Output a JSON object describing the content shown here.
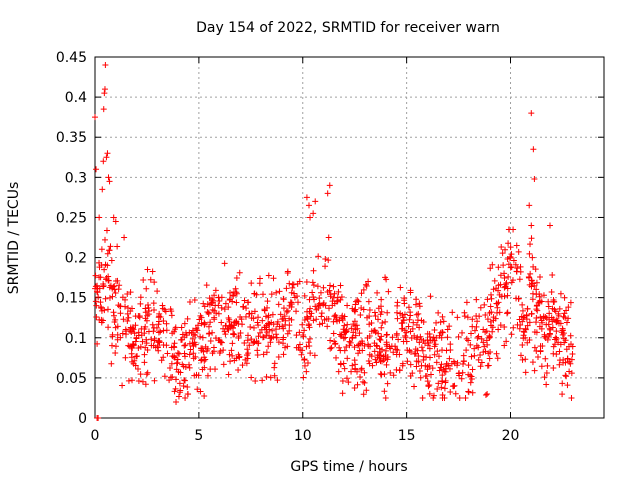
{
  "colors": {
    "marker": "#ff0000",
    "grid": "#a0a0a0",
    "axis": "#000000",
    "background": "#ffffff"
  },
  "chart_data": {
    "type": "scatter",
    "title": "Day 154 of 2022, SRMTID for receiver warn",
    "xlabel": "GPS time / hours",
    "ylabel": "SRMTID / TECUs",
    "xlim": [
      0,
      24.5
    ],
    "ylim": [
      0,
      0.45
    ],
    "grid": true,
    "legend": "none",
    "marker": "+",
    "x_ticks": [
      0,
      5,
      10,
      15,
      20
    ],
    "x_tick_labels": [
      "0",
      "5",
      "10",
      "15",
      "20"
    ],
    "y_ticks": [
      0,
      0.05,
      0.1,
      0.15,
      0.2,
      0.25,
      0.3,
      0.35,
      0.4,
      0.45
    ],
    "y_tick_labels": [
      "0",
      "0.05",
      "0.1",
      "0.15",
      "0.2",
      "0.25",
      "0.3",
      "0.35",
      "0.4",
      "0.45"
    ],
    "series": [
      {
        "name": "SRMTID",
        "profile_hours": [
          0.0,
          0.3,
          0.6,
          1.0,
          1.5,
          2.0,
          3.0,
          4.0,
          5.0,
          6.0,
          7.0,
          8.0,
          9.0,
          9.5,
          10.0,
          10.5,
          11.0,
          11.5,
          12.0,
          13.0,
          14.0,
          15.0,
          15.5,
          16.0,
          16.5,
          17.0,
          18.0,
          19.0,
          19.5,
          20.0,
          20.4,
          20.7,
          21.0,
          21.5,
          22.0,
          22.5,
          23.0
        ],
        "profile_median": [
          0.16,
          0.17,
          0.16,
          0.13,
          0.11,
          0.1,
          0.12,
          0.07,
          0.09,
          0.12,
          0.11,
          0.11,
          0.11,
          0.15,
          0.09,
          0.13,
          0.15,
          0.12,
          0.09,
          0.1,
          0.1,
          0.11,
          0.1,
          0.08,
          0.07,
          0.07,
          0.08,
          0.11,
          0.15,
          0.19,
          0.17,
          0.1,
          0.16,
          0.11,
          0.11,
          0.1,
          0.07
        ],
        "outliers": [
          [
            0.0,
            0.375
          ],
          [
            0.05,
            0.31
          ],
          [
            0.1,
            0.0
          ],
          [
            0.15,
            0.0
          ],
          [
            0.2,
            0.25
          ],
          [
            0.35,
            0.285
          ],
          [
            0.4,
            0.32
          ],
          [
            0.42,
            0.385
          ],
          [
            0.45,
            0.405
          ],
          [
            0.48,
            0.41
          ],
          [
            0.5,
            0.44
          ],
          [
            0.55,
            0.325
          ],
          [
            0.6,
            0.33
          ],
          [
            0.65,
            0.3
          ],
          [
            0.7,
            0.295
          ],
          [
            0.9,
            0.25
          ],
          [
            1.0,
            0.245
          ],
          [
            1.4,
            0.225
          ],
          [
            10.2,
            0.275
          ],
          [
            10.3,
            0.265
          ],
          [
            10.35,
            0.25
          ],
          [
            10.5,
            0.255
          ],
          [
            10.6,
            0.27
          ],
          [
            11.2,
            0.28
          ],
          [
            11.3,
            0.29
          ],
          [
            11.25,
            0.225
          ],
          [
            20.3,
            0.215
          ],
          [
            20.9,
            0.265
          ],
          [
            21.0,
            0.38
          ],
          [
            21.1,
            0.335
          ],
          [
            21.15,
            0.298
          ],
          [
            21.0,
            0.24
          ],
          [
            21.9,
            0.24
          ],
          [
            3.9,
            0.02
          ]
        ]
      }
    ]
  }
}
